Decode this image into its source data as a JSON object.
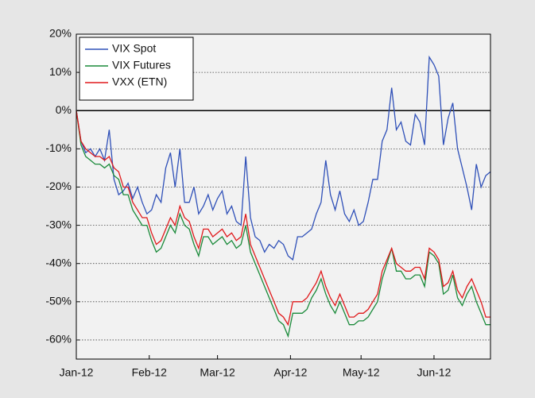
{
  "chart_data": {
    "type": "line",
    "x": [
      0,
      2,
      4,
      6,
      8,
      10,
      12,
      14,
      16,
      18,
      20,
      22,
      24,
      26,
      28,
      30,
      32,
      34,
      36,
      38,
      40,
      42,
      44,
      46,
      48,
      50,
      52,
      54,
      56,
      58,
      60,
      62,
      64,
      66,
      68,
      70,
      72,
      74,
      76,
      78,
      80,
      82,
      84,
      86,
      88,
      90,
      92,
      94,
      96,
      98,
      100,
      102,
      104,
      106,
      108,
      110,
      112,
      114,
      116,
      118,
      120,
      122,
      124,
      126,
      128,
      130,
      132,
      134,
      136,
      138,
      140,
      142,
      144,
      146,
      148,
      150,
      152,
      154,
      156,
      158,
      160,
      162,
      164,
      166,
      168,
      170,
      172,
      174,
      176
    ],
    "xlim": [
      0,
      176
    ],
    "xticks": [
      {
        "value": 0,
        "label": "Jan-12"
      },
      {
        "value": 31,
        "label": "Feb-12"
      },
      {
        "value": 60,
        "label": "Mar-12"
      },
      {
        "value": 91,
        "label": "Apr-12"
      },
      {
        "value": 121,
        "label": "May-12"
      },
      {
        "value": 152,
        "label": "Jun-12"
      }
    ],
    "ylim": [
      -65,
      20
    ],
    "yticks": [
      {
        "value": 20,
        "label": "20%"
      },
      {
        "value": 10,
        "label": "10%"
      },
      {
        "value": 0,
        "label": "0%"
      },
      {
        "value": -10,
        "label": "-10%"
      },
      {
        "value": -20,
        "label": "-20%"
      },
      {
        "value": -30,
        "label": "-30%"
      },
      {
        "value": -40,
        "label": "-40%"
      },
      {
        "value": -50,
        "label": "-50%"
      },
      {
        "value": -60,
        "label": "-60%"
      }
    ],
    "grid": true,
    "zero_line": true,
    "legend": "upper left",
    "series": [
      {
        "name": "VIX Spot",
        "color": "#2f50b8",
        "values": [
          0,
          -8,
          -11,
          -10,
          -12,
          -10,
          -13,
          -5,
          -18,
          -22,
          -21,
          -19,
          -23,
          -20,
          -24,
          -27,
          -26,
          -22,
          -24,
          -15,
          -11,
          -20,
          -10,
          -24,
          -24,
          -20,
          -27,
          -25,
          -22,
          -26,
          -23,
          -21,
          -27,
          -25,
          -29,
          -30,
          -12,
          -28,
          -33,
          -34,
          -37,
          -35,
          -36,
          -34,
          -35,
          -38,
          -39,
          -33,
          -33,
          -32,
          -31,
          -27,
          -24,
          -13,
          -22,
          -26,
          -21,
          -27,
          -29,
          -26,
          -30,
          -29,
          -24,
          -18,
          -18,
          -8,
          -5,
          6,
          -5,
          -3,
          -8,
          -9,
          -1,
          -3,
          -9,
          14,
          12,
          9,
          -9,
          -2,
          2,
          -10,
          -15,
          -20,
          -26,
          -14,
          -20,
          -17,
          -16
        ]
      },
      {
        "name": "VIX Futures",
        "color": "#1a8a3a",
        "values": [
          0,
          -9,
          -12,
          -13,
          -14,
          -14,
          -15,
          -14,
          -17,
          -18,
          -22,
          -22,
          -26,
          -28,
          -30,
          -30,
          -34,
          -37,
          -36,
          -33,
          -30,
          -32,
          -27,
          -30,
          -31,
          -35,
          -38,
          -33,
          -33,
          -35,
          -34,
          -33,
          -35,
          -34,
          -36,
          -35,
          -30,
          -37,
          -40,
          -43,
          -46,
          -49,
          -52,
          -55,
          -56,
          -59,
          -53,
          -53,
          -53,
          -52,
          -49,
          -47,
          -44,
          -48,
          -51,
          -53,
          -50,
          -53,
          -56,
          -56,
          -55,
          -55,
          -54,
          -52,
          -50,
          -44,
          -40,
          -36,
          -42,
          -42,
          -44,
          -44,
          -43,
          -43,
          -46,
          -37,
          -38,
          -40,
          -48,
          -47,
          -43,
          -49,
          -51,
          -48,
          -46,
          -50,
          -53,
          -56,
          -56
        ]
      },
      {
        "name": "VXX (ETN)",
        "color": "#e0191b",
        "values": [
          0,
          -8,
          -10,
          -11,
          -12,
          -12,
          -13,
          -12,
          -15,
          -16,
          -20,
          -20,
          -24,
          -26,
          -28,
          -28,
          -32,
          -35,
          -34,
          -31,
          -28,
          -30,
          -25,
          -28,
          -29,
          -33,
          -36,
          -31,
          -31,
          -33,
          -32,
          -31,
          -33,
          -32,
          -34,
          -33,
          -27,
          -35,
          -38,
          -41,
          -44,
          -47,
          -50,
          -53,
          -54,
          -56,
          -50,
          -50,
          -50,
          -49,
          -47,
          -45,
          -42,
          -46,
          -49,
          -51,
          -48,
          -51,
          -54,
          -54,
          -53,
          -53,
          -52,
          -50,
          -48,
          -42,
          -39,
          -36,
          -40,
          -41,
          -42,
          -42,
          -41,
          -41,
          -44,
          -36,
          -37,
          -39,
          -46,
          -45,
          -42,
          -47,
          -49,
          -46,
          -44,
          -47,
          -50,
          -54,
          -54
        ]
      }
    ]
  }
}
